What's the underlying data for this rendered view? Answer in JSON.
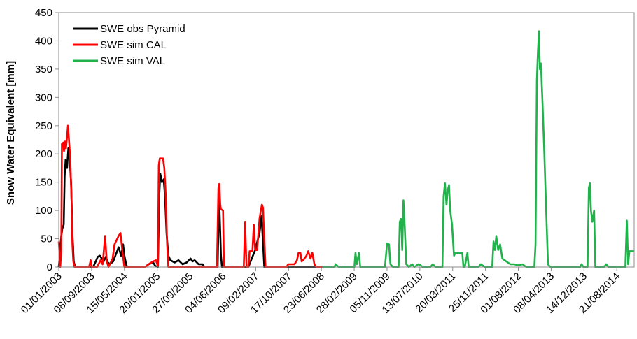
{
  "chart_data": {
    "type": "line",
    "title": "",
    "xlabel": "",
    "ylabel": "Snow Water Equivalent [mm]",
    "xlim": [
      "2003-01-01",
      "2014-12-31"
    ],
    "ylim": [
      0,
      450
    ],
    "yticks": [
      0,
      50,
      100,
      150,
      200,
      250,
      300,
      350,
      400,
      450
    ],
    "xticks": [
      {
        "date": "2003-01-01",
        "label": "01/01/2003"
      },
      {
        "date": "2003-09-08",
        "label": "08/09/2003"
      },
      {
        "date": "2004-05-15",
        "label": "15/05/2004"
      },
      {
        "date": "2005-01-20",
        "label": "20/01/2005"
      },
      {
        "date": "2005-09-27",
        "label": "27/09/2005"
      },
      {
        "date": "2006-06-04",
        "label": "04/06/2006"
      },
      {
        "date": "2007-02-09",
        "label": "09/02/2007"
      },
      {
        "date": "2007-10-17",
        "label": "17/10/2007"
      },
      {
        "date": "2008-06-23",
        "label": "23/06/2008"
      },
      {
        "date": "2009-02-28",
        "label": "28/02/2009"
      },
      {
        "date": "2009-11-05",
        "label": "05/11/2009"
      },
      {
        "date": "2010-07-13",
        "label": "13/07/2010"
      },
      {
        "date": "2011-03-20",
        "label": "20/03/2011"
      },
      {
        "date": "2011-11-25",
        "label": "25/11/2011"
      },
      {
        "date": "2012-08-01",
        "label": "01/08/2012"
      },
      {
        "date": "2013-04-08",
        "label": "08/04/2013"
      },
      {
        "date": "2013-12-14",
        "label": "14/12/2013"
      },
      {
        "date": "2014-08-21",
        "label": "21/08/2014"
      }
    ],
    "grid": false,
    "legend_position": "top-left",
    "series": [
      {
        "name": "SWE obs Pyramid",
        "color": "#000000",
        "points": [
          [
            "2003-01-01",
            0
          ],
          [
            "2003-01-20",
            55
          ],
          [
            "2003-01-28",
            68
          ],
          [
            "2003-02-08",
            75
          ],
          [
            "2003-02-15",
            160
          ],
          [
            "2003-02-22",
            190
          ],
          [
            "2003-03-05",
            175
          ],
          [
            "2003-03-15",
            210
          ],
          [
            "2003-03-25",
            190
          ],
          [
            "2003-04-05",
            150
          ],
          [
            "2003-04-15",
            60
          ],
          [
            "2003-04-25",
            10
          ],
          [
            "2003-05-05",
            0
          ],
          [
            "2003-09-20",
            0
          ],
          [
            "2003-10-10",
            10
          ],
          [
            "2003-10-25",
            18
          ],
          [
            "2003-11-10",
            20
          ],
          [
            "2003-11-25",
            15
          ],
          [
            "2003-12-10",
            10
          ],
          [
            "2003-12-25",
            18
          ],
          [
            "2004-01-10",
            8
          ],
          [
            "2004-01-25",
            5
          ],
          [
            "2004-02-20",
            10
          ],
          [
            "2004-03-15",
            25
          ],
          [
            "2004-04-01",
            35
          ],
          [
            "2004-04-20",
            20
          ],
          [
            "2004-05-05",
            40
          ],
          [
            "2004-05-15",
            20
          ],
          [
            "2004-05-30",
            3
          ],
          [
            "2004-06-10",
            0
          ],
          [
            "2004-10-20",
            0
          ],
          [
            "2004-11-15",
            5
          ],
          [
            "2004-12-20",
            8
          ],
          [
            "2005-01-05",
            2
          ],
          [
            "2005-01-25",
            0
          ],
          [
            "2005-02-05",
            130
          ],
          [
            "2005-02-12",
            165
          ],
          [
            "2005-02-25",
            150
          ],
          [
            "2005-03-10",
            155
          ],
          [
            "2005-03-20",
            125
          ],
          [
            "2005-04-01",
            60
          ],
          [
            "2005-04-15",
            20
          ],
          [
            "2005-05-01",
            12
          ],
          [
            "2005-06-01",
            8
          ],
          [
            "2005-07-01",
            12
          ],
          [
            "2005-08-01",
            5
          ],
          [
            "2005-09-01",
            8
          ],
          [
            "2005-10-01",
            15
          ],
          [
            "2005-10-15",
            10
          ],
          [
            "2005-11-01",
            12
          ],
          [
            "2005-12-01",
            5
          ],
          [
            "2006-01-01",
            5
          ],
          [
            "2006-01-15",
            0
          ],
          [
            "2006-04-25",
            0
          ],
          [
            "2006-05-05",
            130
          ],
          [
            "2006-05-12",
            80
          ],
          [
            "2006-05-20",
            20
          ],
          [
            "2006-05-28",
            0
          ],
          [
            "2006-12-15",
            0
          ],
          [
            "2007-02-05",
            30
          ],
          [
            "2007-03-10",
            60
          ],
          [
            "2007-03-25",
            90
          ],
          [
            "2007-04-05",
            45
          ],
          [
            "2007-04-15",
            0
          ],
          [
            "2007-04-30",
            0
          ],
          [
            "2008-06-30",
            0
          ]
        ]
      },
      {
        "name": "SWE sim CAL",
        "color": "#ff0000",
        "points": [
          [
            "2003-01-01",
            45
          ],
          [
            "2003-01-12",
            0
          ],
          [
            "2003-01-20",
            30
          ],
          [
            "2003-01-25",
            218
          ],
          [
            "2003-02-05",
            220
          ],
          [
            "2003-02-10",
            205
          ],
          [
            "2003-02-18",
            222
          ],
          [
            "2003-02-25",
            210
          ],
          [
            "2003-03-05",
            230
          ],
          [
            "2003-03-12",
            250
          ],
          [
            "2003-03-20",
            225
          ],
          [
            "2003-03-30",
            190
          ],
          [
            "2003-04-08",
            120
          ],
          [
            "2003-04-15",
            40
          ],
          [
            "2003-04-22",
            10
          ],
          [
            "2003-05-01",
            0
          ],
          [
            "2003-08-20",
            0
          ],
          [
            "2003-09-01",
            12
          ],
          [
            "2003-09-10",
            0
          ],
          [
            "2003-10-20",
            0
          ],
          [
            "2003-11-15",
            12
          ],
          [
            "2003-12-01",
            5
          ],
          [
            "2003-12-20",
            55
          ],
          [
            "2004-01-01",
            10
          ],
          [
            "2004-01-15",
            0
          ],
          [
            "2004-02-15",
            15
          ],
          [
            "2004-03-01",
            40
          ],
          [
            "2004-04-01",
            55
          ],
          [
            "2004-04-15",
            60
          ],
          [
            "2004-05-01",
            25
          ],
          [
            "2004-05-15",
            0
          ],
          [
            "2004-10-20",
            0
          ],
          [
            "2004-11-15",
            5
          ],
          [
            "2004-12-20",
            10
          ],
          [
            "2005-01-10",
            12
          ],
          [
            "2005-01-25",
            2
          ],
          [
            "2005-02-01",
            180
          ],
          [
            "2005-02-08",
            192
          ],
          [
            "2005-03-05",
            192
          ],
          [
            "2005-03-15",
            175
          ],
          [
            "2005-03-25",
            130
          ],
          [
            "2005-04-05",
            40
          ],
          [
            "2005-04-15",
            0
          ],
          [
            "2006-04-20",
            0
          ],
          [
            "2006-05-01",
            140
          ],
          [
            "2006-05-08",
            147
          ],
          [
            "2006-05-15",
            110
          ],
          [
            "2006-05-20",
            102
          ],
          [
            "2006-06-05",
            100
          ],
          [
            "2006-06-12",
            0
          ],
          [
            "2006-11-10",
            0
          ],
          [
            "2006-11-20",
            80
          ],
          [
            "2006-12-01",
            0
          ],
          [
            "2006-12-15",
            0
          ],
          [
            "2006-12-25",
            28
          ],
          [
            "2007-01-15",
            28
          ],
          [
            "2007-01-25",
            75
          ],
          [
            "2007-02-05",
            30
          ],
          [
            "2007-02-20",
            30
          ],
          [
            "2007-03-10",
            85
          ],
          [
            "2007-03-20",
            100
          ],
          [
            "2007-03-28",
            110
          ],
          [
            "2007-04-05",
            105
          ],
          [
            "2007-04-15",
            50
          ],
          [
            "2007-04-25",
            0
          ],
          [
            "2007-10-01",
            0
          ],
          [
            "2007-10-15",
            5
          ],
          [
            "2007-11-15",
            5
          ],
          [
            "2007-12-01",
            5
          ],
          [
            "2007-12-20",
            12
          ],
          [
            "2008-01-01",
            25
          ],
          [
            "2008-01-15",
            25
          ],
          [
            "2008-01-25",
            10
          ],
          [
            "2008-02-15",
            15
          ],
          [
            "2008-03-01",
            20
          ],
          [
            "2008-03-15",
            28
          ],
          [
            "2008-04-01",
            15
          ],
          [
            "2008-04-15",
            25
          ],
          [
            "2008-05-01",
            5
          ],
          [
            "2008-05-15",
            0
          ],
          [
            "2008-06-30",
            0
          ]
        ]
      },
      {
        "name": "SWE sim VAL",
        "color": "#21b24b",
        "points": [
          [
            "2008-06-30",
            0
          ],
          [
            "2008-10-01",
            0
          ],
          [
            "2008-10-10",
            5
          ],
          [
            "2008-11-01",
            0
          ],
          [
            "2009-03-01",
            0
          ],
          [
            "2009-03-10",
            25
          ],
          [
            "2009-03-20",
            5
          ],
          [
            "2009-04-05",
            25
          ],
          [
            "2009-04-15",
            0
          ],
          [
            "2009-10-20",
            0
          ],
          [
            "2009-11-05",
            42
          ],
          [
            "2009-11-20",
            40
          ],
          [
            "2009-12-01",
            5
          ],
          [
            "2009-12-20",
            0
          ],
          [
            "2010-02-01",
            0
          ],
          [
            "2010-02-10",
            80
          ],
          [
            "2010-02-20",
            85
          ],
          [
            "2010-03-01",
            30
          ],
          [
            "2010-03-10",
            118
          ],
          [
            "2010-03-20",
            70
          ],
          [
            "2010-04-01",
            5
          ],
          [
            "2010-04-20",
            0
          ],
          [
            "2010-05-15",
            5
          ],
          [
            "2010-06-01",
            0
          ],
          [
            "2010-07-01",
            5
          ],
          [
            "2010-07-20",
            3
          ],
          [
            "2010-08-01",
            0
          ],
          [
            "2010-10-01",
            0
          ],
          [
            "2010-10-20",
            5
          ],
          [
            "2010-11-10",
            0
          ],
          [
            "2011-01-01",
            0
          ],
          [
            "2011-01-10",
            125
          ],
          [
            "2011-01-20",
            148
          ],
          [
            "2011-02-01",
            110
          ],
          [
            "2011-02-10",
            135
          ],
          [
            "2011-02-20",
            145
          ],
          [
            "2011-03-01",
            100
          ],
          [
            "2011-03-15",
            75
          ],
          [
            "2011-03-30",
            20
          ],
          [
            "2011-04-10",
            25
          ],
          [
            "2011-05-01",
            25
          ],
          [
            "2011-06-01",
            25
          ],
          [
            "2011-06-10",
            0
          ],
          [
            "2011-06-20",
            0
          ],
          [
            "2011-07-10",
            25
          ],
          [
            "2011-07-20",
            0
          ],
          [
            "2011-10-01",
            0
          ],
          [
            "2011-10-20",
            5
          ],
          [
            "2011-11-20",
            0
          ],
          [
            "2012-01-15",
            0
          ],
          [
            "2012-01-25",
            45
          ],
          [
            "2012-02-05",
            30
          ],
          [
            "2012-02-15",
            55
          ],
          [
            "2012-03-01",
            30
          ],
          [
            "2012-03-15",
            40
          ],
          [
            "2012-04-01",
            15
          ],
          [
            "2012-05-01",
            10
          ],
          [
            "2012-06-01",
            5
          ],
          [
            "2012-07-01",
            5
          ],
          [
            "2012-08-01",
            3
          ],
          [
            "2012-09-01",
            5
          ],
          [
            "2012-10-01",
            0
          ],
          [
            "2012-12-01",
            0
          ],
          [
            "2012-12-10",
            40
          ],
          [
            "2012-12-20",
            330
          ],
          [
            "2012-12-28",
            380
          ],
          [
            "2013-01-05",
            417
          ],
          [
            "2013-01-12",
            350
          ],
          [
            "2013-01-20",
            360
          ],
          [
            "2013-02-01",
            290
          ],
          [
            "2013-02-15",
            200
          ],
          [
            "2013-03-01",
            100
          ],
          [
            "2013-03-15",
            5
          ],
          [
            "2013-04-01",
            0
          ],
          [
            "2013-11-15",
            0
          ],
          [
            "2013-11-25",
            5
          ],
          [
            "2013-12-10",
            0
          ],
          [
            "2014-01-10",
            0
          ],
          [
            "2014-01-20",
            140
          ],
          [
            "2014-01-28",
            148
          ],
          [
            "2014-02-05",
            100
          ],
          [
            "2014-02-15",
            80
          ],
          [
            "2014-03-01",
            100
          ],
          [
            "2014-03-10",
            0
          ],
          [
            "2014-05-15",
            0
          ],
          [
            "2014-06-01",
            5
          ],
          [
            "2014-06-20",
            0
          ],
          [
            "2014-10-25",
            0
          ],
          [
            "2014-11-05",
            82
          ],
          [
            "2014-11-15",
            5
          ],
          [
            "2014-11-25",
            28
          ],
          [
            "2014-12-31",
            28
          ]
        ]
      }
    ]
  }
}
